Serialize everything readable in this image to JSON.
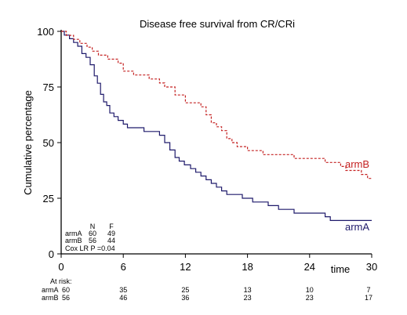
{
  "chart_data": {
    "type": "line",
    "step": true,
    "title": "Disease free survival from CR/CRi",
    "xlabel": "time",
    "ylabel": "Cumulative percentage",
    "xlim": [
      0,
      30
    ],
    "ylim": [
      0,
      100
    ],
    "xticks": [
      0,
      6,
      12,
      18,
      24,
      30
    ],
    "yticks": [
      0,
      25,
      50,
      75,
      100
    ],
    "grid": false,
    "series": [
      {
        "name": "armA",
        "color": "#1f1a6b",
        "dash": false,
        "x": [
          0,
          0.3,
          0.8,
          1.2,
          1.6,
          2.0,
          2.4,
          2.8,
          3.2,
          3.5,
          3.8,
          4.1,
          4.4,
          4.7,
          5.1,
          5.5,
          6.0,
          6.4,
          7.0,
          8.0,
          9.5,
          10.0,
          10.5,
          11.0,
          11.4,
          11.9,
          12.5,
          13.0,
          13.5,
          14.0,
          14.5,
          15.0,
          15.5,
          16.0,
          17.5,
          18.5,
          20.0,
          21.0,
          22.5,
          24.0,
          25.5,
          26.0,
          28.0,
          30.0
        ],
        "y": [
          100,
          98.3,
          96.7,
          95.0,
          93.3,
          90.0,
          88.3,
          85.0,
          80.0,
          76.7,
          71.7,
          68.3,
          66.7,
          63.3,
          61.7,
          60.0,
          58.3,
          56.7,
          56.7,
          55.0,
          53.3,
          50.0,
          46.7,
          43.3,
          41.7,
          40.0,
          38.3,
          36.7,
          35.0,
          33.3,
          31.7,
          30.0,
          28.3,
          26.7,
          25.0,
          23.3,
          21.7,
          20.0,
          18.3,
          18.3,
          16.7,
          15.0,
          15.0,
          15.0
        ]
      },
      {
        "name": "armB",
        "color": "#c42020",
        "dash": true,
        "x": [
          0,
          0.5,
          1.2,
          1.8,
          2.5,
          3.0,
          3.6,
          4.5,
          5.5,
          6.0,
          7.0,
          8.5,
          9.5,
          10.0,
          11.0,
          12.0,
          13.5,
          14.0,
          14.5,
          15.0,
          15.5,
          16.0,
          16.5,
          17.0,
          18.0,
          19.5,
          21.0,
          22.5,
          24.0,
          25.5,
          26.5,
          27.0,
          27.5,
          28.0,
          29.0,
          29.6,
          30.0
        ],
        "y": [
          100,
          98.2,
          96.4,
          94.6,
          92.9,
          91.1,
          89.3,
          87.5,
          85.7,
          82.1,
          80.4,
          78.6,
          76.8,
          75.0,
          71.4,
          67.9,
          66.1,
          62.5,
          58.9,
          57.1,
          55.4,
          51.8,
          50.0,
          48.2,
          46.4,
          44.6,
          44.6,
          42.9,
          42.9,
          41.1,
          41.1,
          39.3,
          37.5,
          37.5,
          35.7,
          33.9,
          33.9
        ]
      }
    ],
    "series_labels": [
      "armB",
      "armA"
    ],
    "stats_table": {
      "header": [
        "",
        "N",
        "F"
      ],
      "rows": [
        [
          "armA",
          "60",
          "49"
        ],
        [
          "armB",
          "56",
          "44"
        ]
      ],
      "cox": "Cox LR P =0.04"
    },
    "at_risk": {
      "label": "At risk:",
      "times": [
        0,
        6,
        12,
        18,
        24,
        30
      ],
      "rows": [
        {
          "name": "armA",
          "counts": [
            "60",
            "35",
            "25",
            "13",
            "10",
            "7"
          ]
        },
        {
          "name": "armB",
          "counts": [
            "56",
            "46",
            "36",
            "23",
            "23",
            "17"
          ]
        }
      ]
    }
  }
}
